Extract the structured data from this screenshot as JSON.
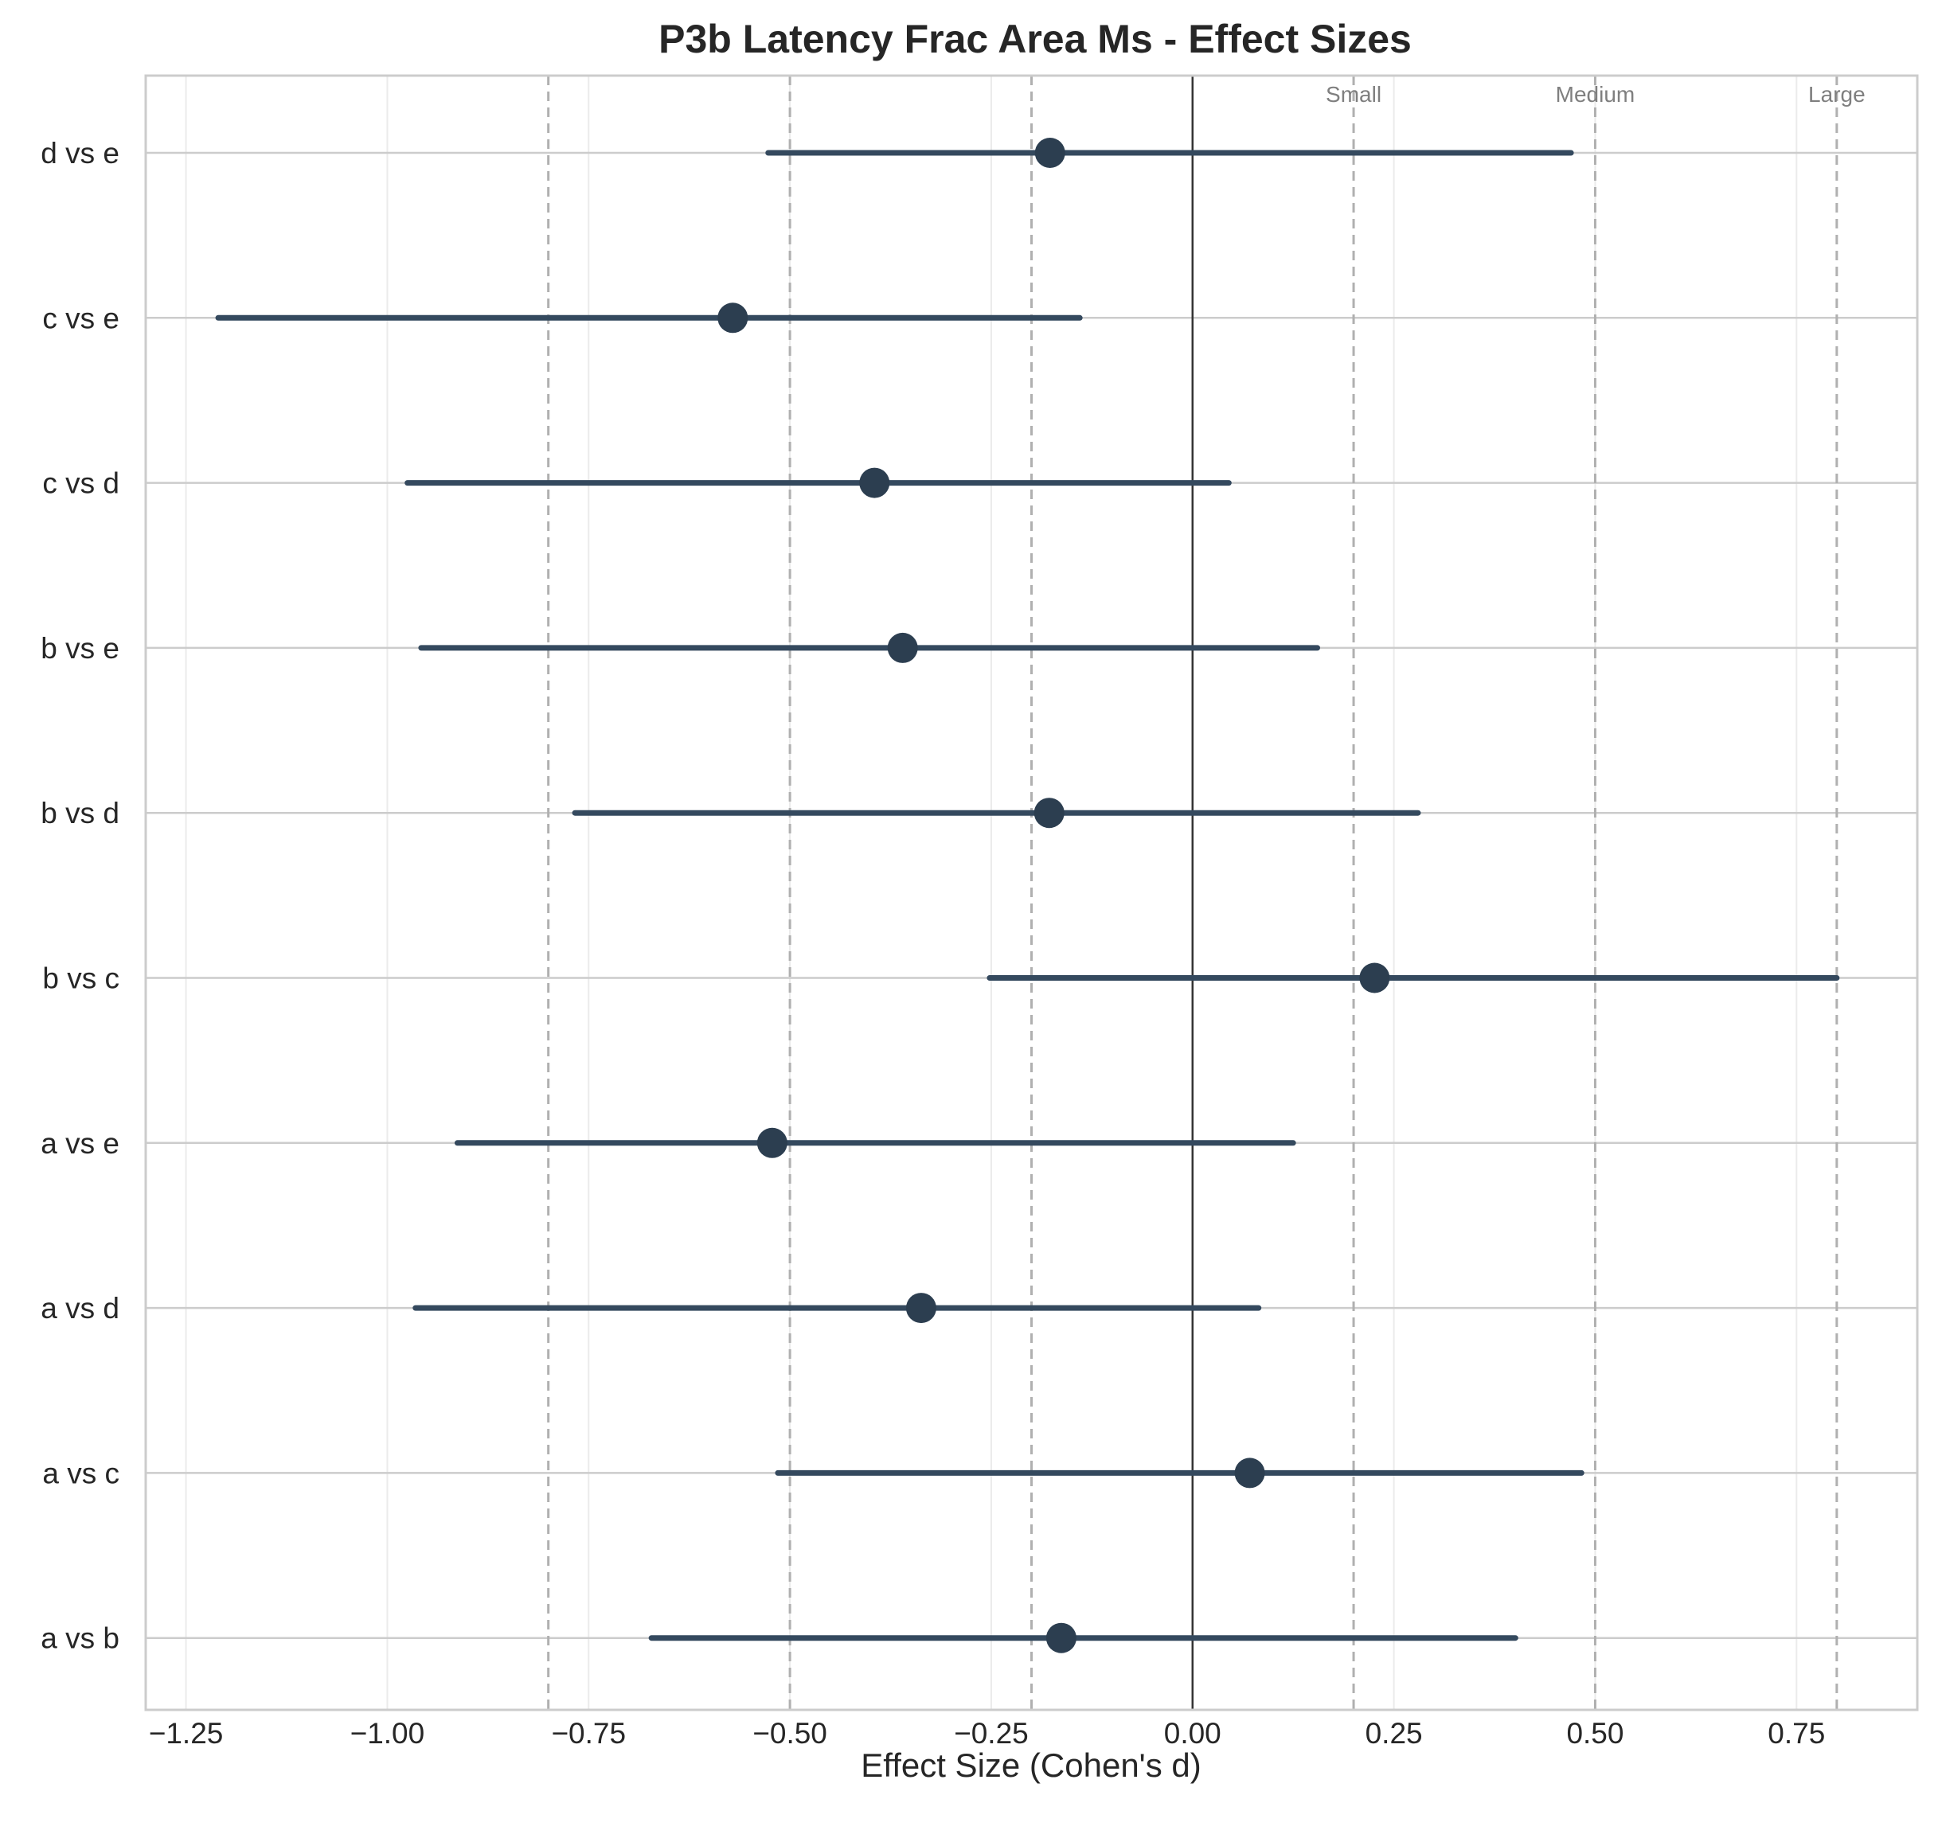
{
  "chart_data": {
    "type": "forest",
    "title": "P3b Latency Frac Area Ms - Effect Sizes",
    "xlabel": "Effect Size (Cohen's d)",
    "ylabel": "",
    "xlim": [
      -1.3,
      0.9
    ],
    "xticks": [
      -1.25,
      -1.0,
      -0.75,
      -0.5,
      -0.25,
      0.0,
      0.25,
      0.5,
      0.75
    ],
    "xtick_labels": [
      "−1.25",
      "−1.00",
      "−0.75",
      "−0.50",
      "−0.25",
      "0.00",
      "0.25",
      "0.50",
      "0.75"
    ],
    "grid": true,
    "comparisons": [
      {
        "label": "a vs b",
        "d": -0.163,
        "ci_low": -0.672,
        "ci_high": 0.401
      },
      {
        "label": "a vs c",
        "d": 0.071,
        "ci_low": -0.515,
        "ci_high": 0.483
      },
      {
        "label": "a vs d",
        "d": -0.337,
        "ci_low": -0.965,
        "ci_high": 0.082
      },
      {
        "label": "a vs e",
        "d": -0.522,
        "ci_low": -0.913,
        "ci_high": 0.125
      },
      {
        "label": "b vs c",
        "d": 0.226,
        "ci_low": -0.252,
        "ci_high": 0.8
      },
      {
        "label": "b vs d",
        "d": -0.178,
        "ci_low": -0.767,
        "ci_high": 0.28
      },
      {
        "label": "b vs e",
        "d": -0.36,
        "ci_low": -0.958,
        "ci_high": 0.155
      },
      {
        "label": "c vs d",
        "d": -0.395,
        "ci_low": -0.975,
        "ci_high": 0.045
      },
      {
        "label": "c vs e",
        "d": -0.571,
        "ci_low": -1.21,
        "ci_high": -0.14
      },
      {
        "label": "d vs e",
        "d": -0.177,
        "ci_low": -0.527,
        "ci_high": 0.47
      }
    ],
    "reference_lines": [
      {
        "label": "Small",
        "value": 0.2
      },
      {
        "label": "Medium",
        "value": 0.5
      },
      {
        "label": "Large",
        "value": 0.8
      }
    ],
    "reference_lines_negative": [
      -0.2,
      -0.5,
      -0.8
    ],
    "zero_line": 0.0,
    "colors": {
      "point": "#2c3e50",
      "ci_line": "#34495e",
      "grid": "#cccccc",
      "minor_grid": "#ebebeb",
      "threshold": "#b0b0b0",
      "zero_line": "#333333",
      "frame": "#cccccc"
    }
  }
}
